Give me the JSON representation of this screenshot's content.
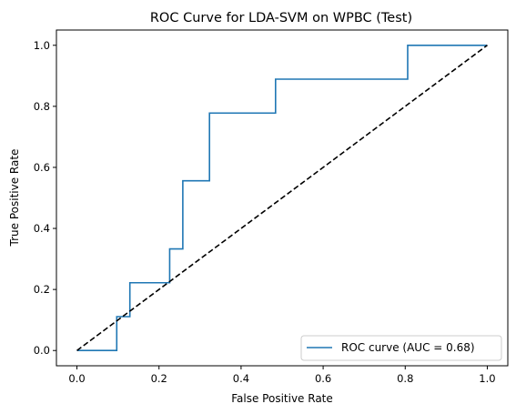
{
  "chart_data": {
    "type": "line",
    "title": "ROC Curve for LDA-SVM on WPBC (Test)",
    "xlabel": "False Positive Rate",
    "ylabel": "True Positive Rate",
    "xlim": [
      -0.05,
      1.05
    ],
    "ylim": [
      -0.05,
      1.05
    ],
    "xticks": [
      "0.0",
      "0.2",
      "0.4",
      "0.6",
      "0.8",
      "1.0"
    ],
    "yticks": [
      "0.0",
      "0.2",
      "0.4",
      "0.6",
      "0.8",
      "1.0"
    ],
    "grid": false,
    "legend_position": "lower-right",
    "series": [
      {
        "name": "ROC curve (AUC = 0.68)",
        "color": "#1f77b4",
        "style": "solid",
        "x": [
          0.0,
          0.0,
          0.097,
          0.097,
          0.129,
          0.129,
          0.226,
          0.226,
          0.258,
          0.258,
          0.323,
          0.323,
          0.484,
          0.484,
          0.806,
          0.806,
          1.0
        ],
        "y": [
          0.0,
          0.0,
          0.0,
          0.111,
          0.111,
          0.222,
          0.222,
          0.333,
          0.333,
          0.556,
          0.556,
          0.778,
          0.778,
          0.889,
          0.889,
          1.0,
          1.0
        ]
      },
      {
        "color": "#000000",
        "style": "dashed",
        "x": [
          0.0,
          1.0
        ],
        "y": [
          0.0,
          1.0
        ]
      }
    ]
  }
}
